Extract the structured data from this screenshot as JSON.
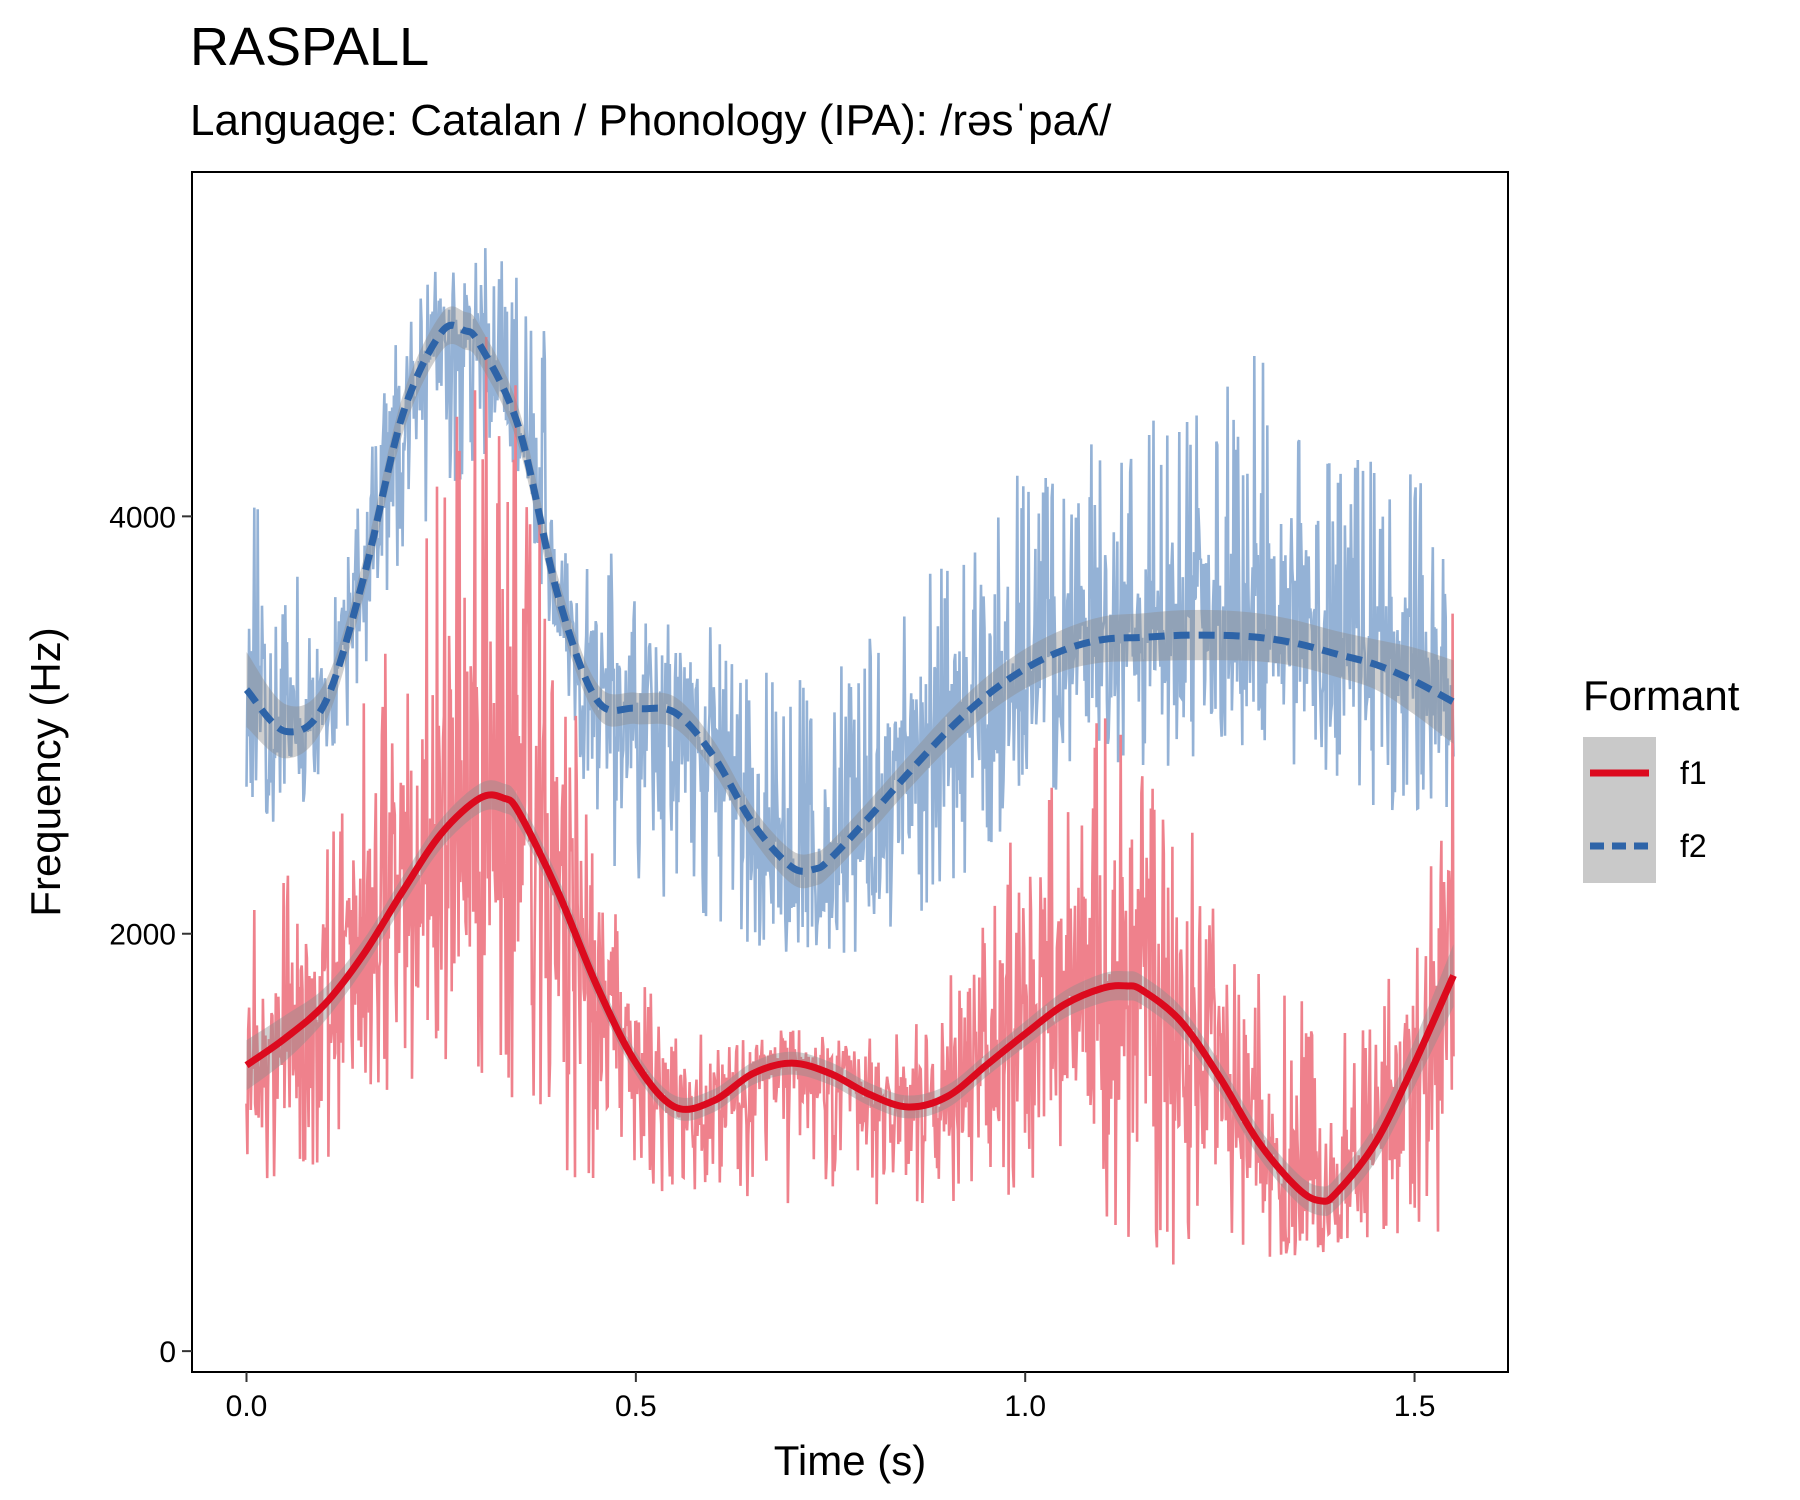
{
  "chart_data": {
    "type": "line",
    "title": "RASPALL",
    "subtitle": "Language: Catalan / Phonology (IPA): /rəsˈpaʎ/",
    "xlabel": "Time (s)",
    "ylabel": "Frequency (Hz)",
    "xlim": [
      -0.07,
      1.62
    ],
    "ylim": [
      -100,
      5650
    ],
    "x_ticks": [
      0.0,
      0.5,
      1.0,
      1.5
    ],
    "x_tick_labels": [
      "0.0",
      "0.5",
      "1.0",
      "1.5"
    ],
    "y_ticks": [
      0,
      2000,
      4000
    ],
    "y_tick_labels": [
      "0",
      "2000",
      "4000"
    ],
    "grid": false,
    "legend": {
      "title": "Formant",
      "position": "right",
      "entries": [
        "f1",
        "f2"
      ]
    },
    "series": [
      {
        "name": "f1",
        "color": "#DC0A1E",
        "raw_color": "#EE7A86",
        "linetype": "solid",
        "smooth": {
          "x": [
            0.0,
            0.05,
            0.1,
            0.15,
            0.2,
            0.25,
            0.3,
            0.33,
            0.35,
            0.4,
            0.45,
            0.5,
            0.55,
            0.6,
            0.65,
            0.7,
            0.75,
            0.8,
            0.85,
            0.9,
            0.95,
            1.0,
            1.05,
            1.1,
            1.13,
            1.15,
            1.2,
            1.25,
            1.3,
            1.35,
            1.38,
            1.4,
            1.45,
            1.5,
            1.55
          ],
          "y": [
            1370,
            1500,
            1660,
            1900,
            2200,
            2480,
            2650,
            2650,
            2580,
            2200,
            1750,
            1380,
            1170,
            1200,
            1330,
            1380,
            1330,
            1230,
            1170,
            1220,
            1370,
            1520,
            1660,
            1740,
            1750,
            1730,
            1580,
            1310,
            1000,
            780,
            720,
            760,
            1000,
            1380,
            1800
          ]
        },
        "band_halfwidth": [
          120,
          110,
          80,
          70,
          70,
          70,
          70,
          70,
          70,
          70,
          60,
          55,
          55,
          55,
          55,
          55,
          55,
          55,
          55,
          55,
          55,
          60,
          65,
          70,
          70,
          70,
          70,
          70,
          70,
          70,
          70,
          75,
          90,
          110,
          150
        ],
        "raw_envelope": {
          "x": [
            0.0,
            0.1,
            0.2,
            0.3,
            0.35,
            0.4,
            0.45,
            0.5,
            0.6,
            0.7,
            0.8,
            0.9,
            1.0,
            1.1,
            1.2,
            1.3,
            1.4,
            1.5,
            1.55
          ],
          "low": [
            800,
            900,
            1300,
            1300,
            1100,
            800,
            800,
            800,
            700,
            700,
            700,
            700,
            700,
            500,
            400,
            400,
            500,
            500,
            500
          ],
          "high": [
            2300,
            2400,
            3800,
            5000,
            4600,
            3600,
            2400,
            1800,
            1500,
            1500,
            1500,
            1800,
            2600,
            3100,
            2800,
            1900,
            1600,
            1900,
            3600
          ]
        }
      },
      {
        "name": "f2",
        "color": "#2E64A8",
        "raw_color": "#8EAED4",
        "linetype": "dashed",
        "smooth": {
          "x": [
            0.0,
            0.05,
            0.1,
            0.15,
            0.2,
            0.25,
            0.28,
            0.3,
            0.35,
            0.4,
            0.45,
            0.5,
            0.55,
            0.6,
            0.65,
            0.7,
            0.73,
            0.75,
            0.8,
            0.85,
            0.9,
            0.95,
            1.0,
            1.05,
            1.1,
            1.15,
            1.2,
            1.25,
            1.3,
            1.35,
            1.4,
            1.45,
            1.5,
            1.55
          ],
          "y": [
            3170,
            2970,
            3100,
            3700,
            4480,
            4880,
            4890,
            4820,
            4420,
            3620,
            3120,
            3080,
            3060,
            2850,
            2530,
            2320,
            2310,
            2360,
            2560,
            2770,
            2970,
            3140,
            3270,
            3360,
            3410,
            3420,
            3430,
            3430,
            3420,
            3390,
            3340,
            3290,
            3210,
            3110
          ]
        },
        "band_halfwidth": [
          180,
          130,
          100,
          90,
          90,
          90,
          90,
          90,
          90,
          90,
          80,
          75,
          75,
          75,
          75,
          80,
          80,
          80,
          80,
          80,
          85,
          90,
          95,
          100,
          110,
          115,
          120,
          120,
          115,
          110,
          110,
          120,
          160,
          200
        ],
        "raw_envelope": {
          "x": [
            0.0,
            0.1,
            0.2,
            0.3,
            0.35,
            0.4,
            0.45,
            0.5,
            0.6,
            0.7,
            0.8,
            0.9,
            1.0,
            1.1,
            1.2,
            1.3,
            1.4,
            1.5,
            1.55
          ],
          "low": [
            2500,
            2600,
            3800,
            4300,
            4200,
            3400,
            2400,
            2200,
            2000,
            1900,
            1900,
            2200,
            2600,
            2800,
            2800,
            2900,
            2700,
            2500,
            2600
          ],
          "high": [
            4300,
            3400,
            5100,
            5300,
            5200,
            5000,
            4000,
            3600,
            3500,
            3200,
            3500,
            3800,
            4300,
            4400,
            4500,
            4800,
            4300,
            4300,
            3800
          ]
        }
      }
    ]
  }
}
